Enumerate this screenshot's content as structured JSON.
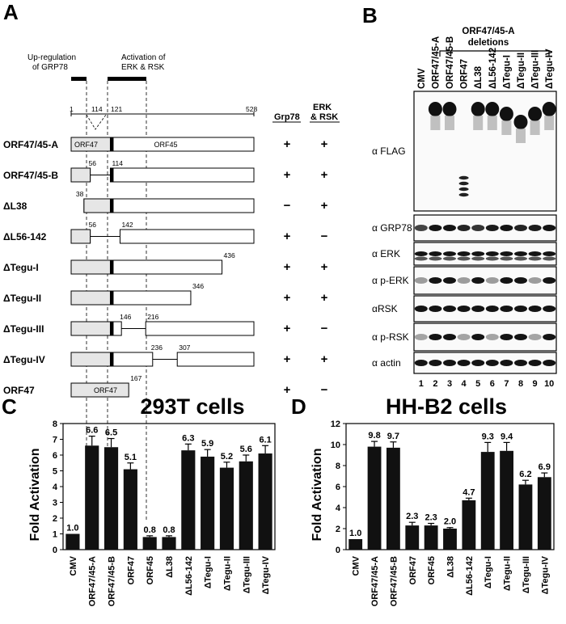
{
  "panels": {
    "A": "A",
    "B": "B",
    "C": "C",
    "D": "D"
  },
  "panelA": {
    "region_up": "Up-regulation",
    "region_up2": "of GRP78",
    "region_act": "Activation of",
    "region_act2": "ERK & RSK",
    "col_grp78": "Grp78",
    "col_erk1": "ERK",
    "col_erk2": "& RSK",
    "scale": {
      "start": "1",
      "p114": "114",
      "p121": "121",
      "end": "528"
    },
    "box_orf47": "ORF47",
    "box_orf45": "ORF45",
    "constructs": [
      {
        "name": "ORF47/45-A",
        "grp78": "+",
        "erk": "+",
        "labels": []
      },
      {
        "name": "ORF47/45-B",
        "grp78": "+",
        "erk": "+",
        "labels": [
          "56",
          "114"
        ]
      },
      {
        "name": "ΔL38",
        "grp78": "−",
        "erk": "+",
        "labels": [
          "38"
        ]
      },
      {
        "name": "ΔL56-142",
        "grp78": "+",
        "erk": "−",
        "labels": [
          "56",
          "142"
        ]
      },
      {
        "name": "ΔTegu-I",
        "grp78": "+",
        "erk": "+",
        "labels": [
          "436"
        ]
      },
      {
        "name": "ΔTegu-II",
        "grp78": "+",
        "erk": "+",
        "labels": [
          "346"
        ]
      },
      {
        "name": "ΔTegu-III",
        "grp78": "+",
        "erk": "−",
        "labels": [
          "146",
          "216"
        ]
      },
      {
        "name": "ΔTegu-IV",
        "grp78": "+",
        "erk": "+",
        "labels": [
          "236",
          "307"
        ]
      },
      {
        "name": "ORF47",
        "grp78": "+",
        "erk": "−",
        "labels": [
          "167"
        ]
      }
    ]
  },
  "panelB": {
    "group_header1": "ORF47/45-A",
    "group_header2": "deletions",
    "lanes": [
      "CMV",
      "ORF47/45-A",
      "ORF47/45-B",
      "ORF47",
      "ΔL38",
      "ΔL56-142",
      "ΔTegu-I",
      "ΔTegu-II",
      "ΔTegu-III",
      "ΔTegu-IV"
    ],
    "lane_numbers": [
      "1",
      "2",
      "3",
      "4",
      "5",
      "6",
      "7",
      "8",
      "9",
      "10"
    ],
    "antibodies": [
      "α FLAG",
      "α GRP78",
      "α ERK",
      "α p-ERK",
      "αRSK",
      "α p-RSK",
      "α actin"
    ]
  },
  "chart_data": [
    {
      "type": "bar",
      "title": "293T cells",
      "ylabel": "Fold Activation",
      "ylim": [
        0,
        8
      ],
      "yticks": [
        "0",
        "1",
        "2",
        "3",
        "4",
        "5",
        "6",
        "7",
        "8"
      ],
      "categories": [
        "CMV",
        "ORF47/45-A",
        "ORF47/45-B",
        "ORF47",
        "ORF45",
        "ΔL38",
        "ΔL56-142",
        "ΔTegu-I",
        "ΔTegu-II",
        "ΔTegu-III",
        "ΔTegu-IV"
      ],
      "values": [
        1.0,
        6.6,
        6.5,
        5.1,
        0.8,
        0.8,
        6.3,
        5.9,
        5.2,
        5.6,
        6.1
      ],
      "labels": [
        "1.0",
        "6.6",
        "6.5",
        "5.1",
        "0.8",
        "0.8",
        "6.3",
        "5.9",
        "5.2",
        "5.6",
        "6.1"
      ],
      "errors": [
        0,
        0.6,
        0.55,
        0.4,
        0.08,
        0.08,
        0.4,
        0.45,
        0.35,
        0.4,
        0.5
      ]
    },
    {
      "type": "bar",
      "title": "HH-B2 cells",
      "ylabel": "Fold Activation",
      "ylim": [
        0,
        12
      ],
      "yticks": [
        "0",
        "2",
        "4",
        "6",
        "8",
        "10",
        "12"
      ],
      "categories": [
        "CMV",
        "ORF47/45-A",
        "ORF47/45-B",
        "ORF47",
        "ORF45",
        "ΔL38",
        "ΔL56-142",
        "ΔTegu-I",
        "ΔTegu-II",
        "ΔTegu-III",
        "ΔTegu-IV"
      ],
      "values": [
        1.0,
        9.8,
        9.7,
        2.3,
        2.3,
        2.0,
        4.7,
        9.3,
        9.4,
        6.2,
        6.9
      ],
      "labels": [
        "1.0",
        "9.8",
        "9.7",
        "2.3",
        "2.3",
        "2.0",
        "4.7",
        "9.3",
        "9.4",
        "6.2",
        "6.9"
      ],
      "errors": [
        0,
        0.5,
        0.55,
        0.3,
        0.2,
        0.1,
        0.2,
        0.9,
        0.8,
        0.4,
        0.4
      ]
    }
  ]
}
